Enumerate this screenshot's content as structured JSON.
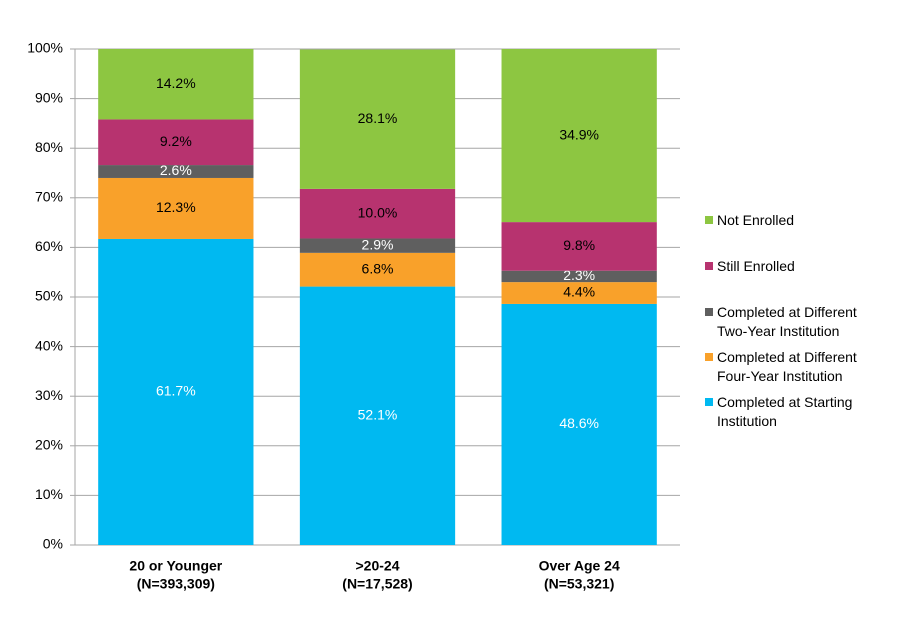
{
  "chart_data": {
    "type": "stacked_bar",
    "categories": [
      [
        "20 or Younger",
        "(N=393,309)"
      ],
      [
        ">20-24",
        "(N=17,528)"
      ],
      [
        "Over Age 24",
        "(N=53,321)"
      ]
    ],
    "series": [
      {
        "name": "Completed at Starting Institution",
        "color": "#00b9f1",
        "label_color": "#ffffff",
        "values": [
          61.7,
          52.1,
          48.6
        ],
        "value_labels": [
          "61.7%",
          "52.1%",
          "48.6%"
        ]
      },
      {
        "name": "Completed at Different Four-Year Institution",
        "color": "#f9a12a",
        "label_color": "#000000",
        "values": [
          12.3,
          6.8,
          4.4
        ],
        "value_labels": [
          "12.3%",
          "6.8%",
          "4.4%"
        ]
      },
      {
        "name": "Completed at Different Two-Year Institution",
        "color": "#5f5f5f",
        "label_color": "#ffffff",
        "values": [
          2.6,
          2.9,
          2.3
        ],
        "value_labels": [
          "2.6%",
          "2.9%",
          "2.3%"
        ]
      },
      {
        "name": "Still Enrolled",
        "color": "#b7336f",
        "label_color": "#000000",
        "values": [
          9.2,
          10.0,
          9.8
        ],
        "value_labels": [
          "9.2%",
          "10.0%",
          "9.8%"
        ]
      },
      {
        "name": "Not Enrolled",
        "color": "#8dc641",
        "label_color": "#000000",
        "values": [
          14.2,
          28.1,
          34.9
        ],
        "value_labels": [
          "14.2%",
          "28.1%",
          "34.9%"
        ]
      }
    ],
    "ylim": [
      0,
      100
    ],
    "yticks": [
      {
        "value": 0,
        "label": "0%"
      },
      {
        "value": 10,
        "label": "10%"
      },
      {
        "value": 20,
        "label": "20%"
      },
      {
        "value": 30,
        "label": "30%"
      },
      {
        "value": 40,
        "label": "40%"
      },
      {
        "value": 50,
        "label": "50%"
      },
      {
        "value": 60,
        "label": "60%"
      },
      {
        "value": 70,
        "label": "70%"
      },
      {
        "value": 80,
        "label": "80%"
      },
      {
        "value": 90,
        "label": "90%"
      },
      {
        "value": 100,
        "label": "100%"
      }
    ],
    "grid": true,
    "legend": "right"
  }
}
